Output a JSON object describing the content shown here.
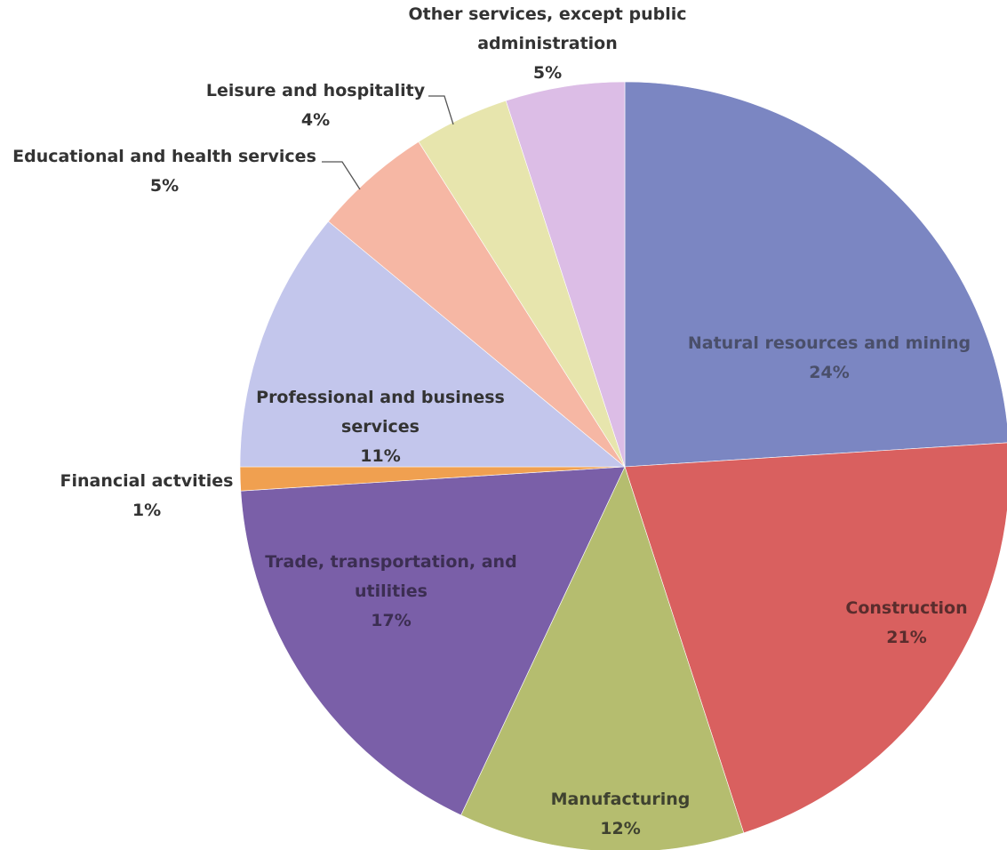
{
  "chart_data": {
    "type": "pie",
    "title": "",
    "slices": [
      {
        "name_lines": [
          "Natural resources and mining"
        ],
        "percent_label": "24%",
        "value": 24,
        "color": "#7b86c2",
        "label_color": "#4a4f6a"
      },
      {
        "name_lines": [
          "Construction"
        ],
        "percent_label": "21%",
        "value": 21,
        "color": "#d9605f",
        "label_color": "#5a2d2d"
      },
      {
        "name_lines": [
          "Manufacturing"
        ],
        "percent_label": "12%",
        "value": 12,
        "color": "#b5bd6f",
        "label_color": "#3f4230"
      },
      {
        "name_lines": [
          "Trade, transportation, and",
          "utilities"
        ],
        "percent_label": "17%",
        "value": 17,
        "color": "#7a5fa8",
        "label_color": "#3c2e52"
      },
      {
        "name_lines": [
          "Financial actvities"
        ],
        "percent_label": "1%",
        "value": 1,
        "color": "#f0a050",
        "label_color": "#333333"
      },
      {
        "name_lines": [
          "Professional and business",
          "services"
        ],
        "percent_label": "11%",
        "value": 11,
        "color": "#c3c6ec",
        "label_color": "#333333"
      },
      {
        "name_lines": [
          "Educational and health services"
        ],
        "percent_label": "5%",
        "value": 5,
        "color": "#f6b7a4",
        "label_color": "#333333"
      },
      {
        "name_lines": [
          "Leisure and hospitality"
        ],
        "percent_label": "4%",
        "value": 4,
        "color": "#e7e5ad",
        "label_color": "#333333"
      },
      {
        "name_lines": [
          "Other services, except public",
          "administration"
        ],
        "percent_label": "5%",
        "value": 5,
        "color": "#dcbde6",
        "label_color": "#333333"
      }
    ]
  }
}
